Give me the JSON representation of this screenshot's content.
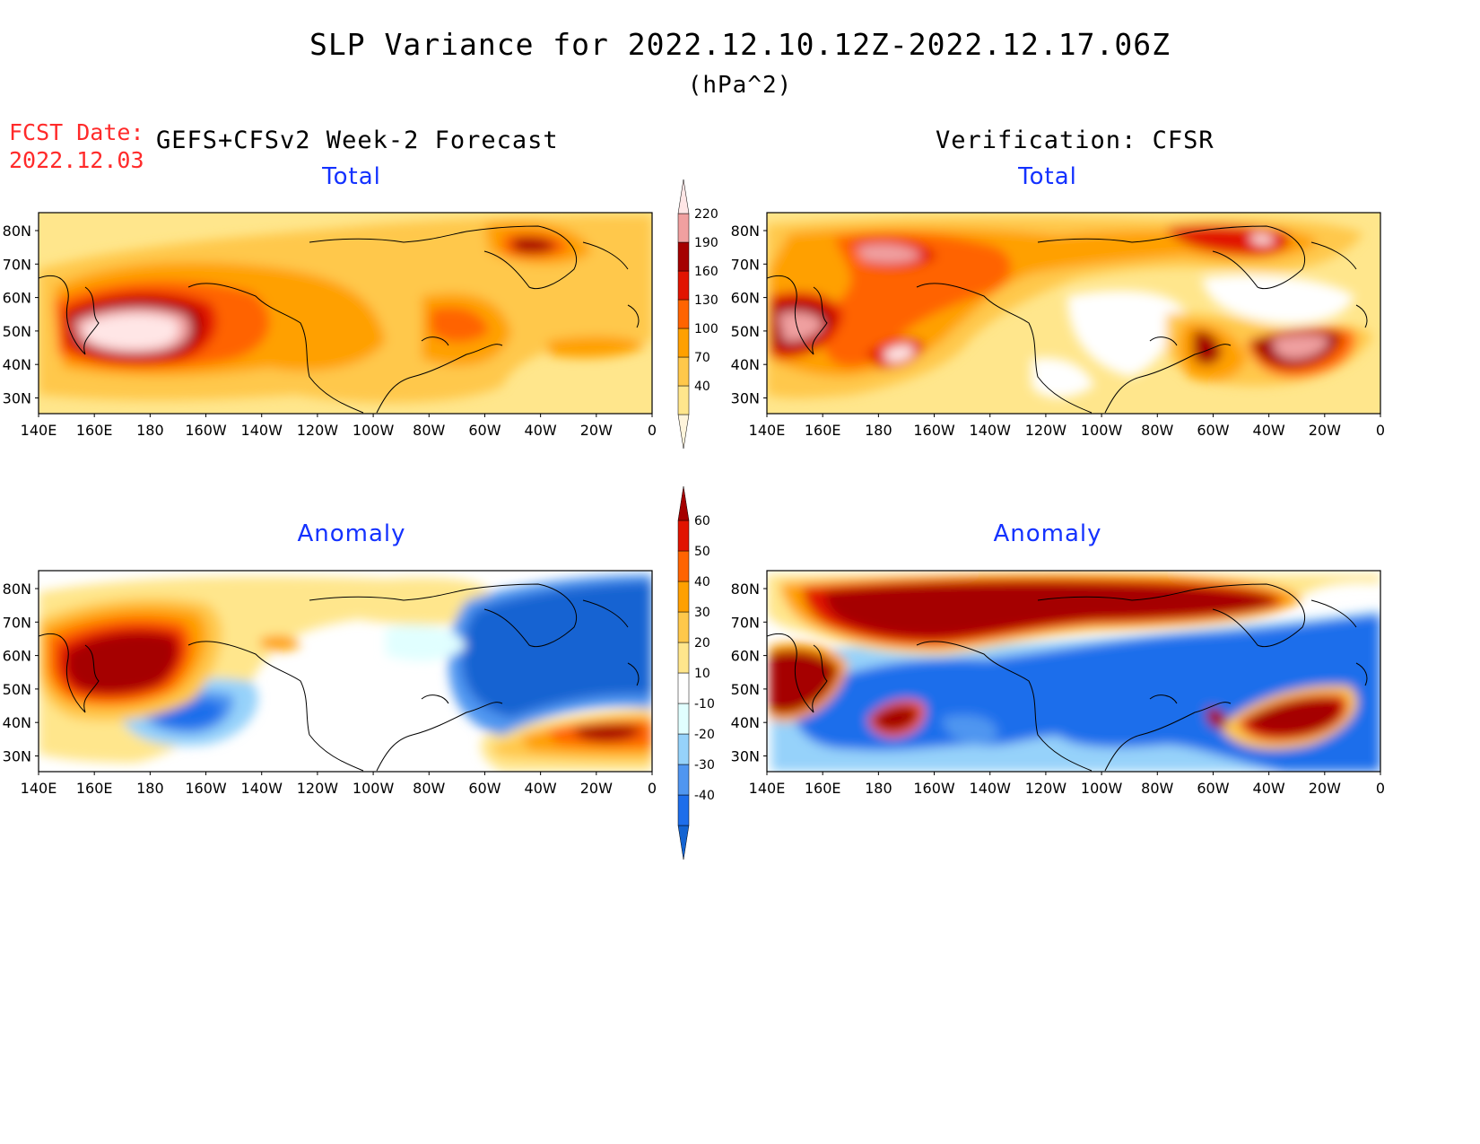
{
  "header": {
    "title": "SLP Variance for 2022.12.10.12Z-2022.12.17.06Z",
    "units": "(hPa^2)",
    "fcst_label": "FCST Date:",
    "fcst_date": "2022.12.03",
    "left_heading": "GEFS+CFSv2 Week-2 Forecast",
    "right_heading": "Verification: CFSR"
  },
  "panels": [
    {
      "title": "Total",
      "kind": "total",
      "source": "forecast"
    },
    {
      "title": "Total",
      "kind": "total",
      "source": "verification"
    },
    {
      "title": "Anomaly",
      "kind": "anomaly",
      "source": "forecast"
    },
    {
      "title": "Anomaly",
      "kind": "anomaly",
      "source": "verification"
    }
  ],
  "axes": {
    "lat_labels": [
      "80N",
      "70N",
      "60N",
      "50N",
      "40N",
      "30N"
    ],
    "lon_labels": [
      "140E",
      "160E",
      "180",
      "160W",
      "140W",
      "120W",
      "100W",
      "80W",
      "60W",
      "40W",
      "20W",
      "0"
    ]
  },
  "colorbars": {
    "total": {
      "levels": [
        "40",
        "70",
        "100",
        "130",
        "160",
        "190",
        "220"
      ],
      "colors": [
        "#fff5dc",
        "#ffe68c",
        "#ffc84b",
        "#ffa000",
        "#ff6400",
        "#e11400",
        "#a50000",
        "#f0a0a0",
        "#ffe6e6"
      ]
    },
    "anomaly": {
      "levels": [
        "-40",
        "-30",
        "-20",
        "-10",
        "10",
        "20",
        "30",
        "40",
        "50",
        "60"
      ],
      "colors": [
        "#1464d2",
        "#1e6eeb",
        "#5096f0",
        "#96d2fa",
        "#e1ffff",
        "#ffffff",
        "#ffe68c",
        "#ffc84b",
        "#ffa000",
        "#ff6400",
        "#e11400",
        "#a50000"
      ]
    }
  }
}
